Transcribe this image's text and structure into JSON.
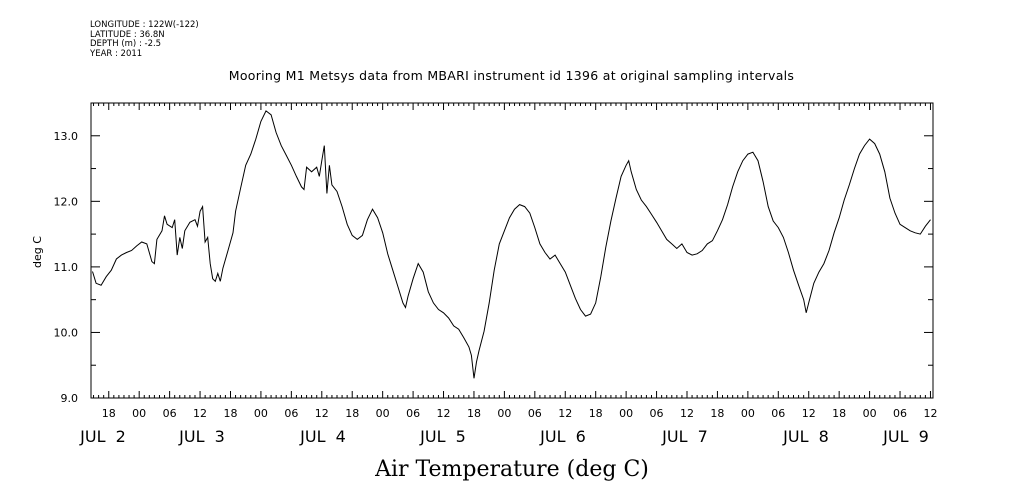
{
  "metadata": {
    "longitude": "LONGITUDE : 122W(-122)",
    "latitude": "LATITUDE : 36.8N",
    "depth": "DEPTH (m) : -2.5",
    "year": "YEAR : 2011"
  },
  "chart_data": {
    "type": "line",
    "title": "Mooring M1 Metsys data from MBARI instrument id 1396 at original sampling intervals",
    "xlabel": "Air Temperature (deg C)",
    "ylabel": "deg C",
    "ylim": [
      9.0,
      13.5
    ],
    "yticks": [
      "9.0",
      "10.0",
      "11.0",
      "12.0",
      "13.0"
    ],
    "xlim_hours": [
      -9.5,
      156.5
    ],
    "x_hour_ticks": [
      "18",
      "00",
      "06",
      "12",
      "18",
      "00",
      "06",
      "12",
      "18",
      "00",
      "06",
      "12",
      "18",
      "00",
      "06",
      "12",
      "18",
      "00",
      "06",
      "12",
      "18",
      "00",
      "06",
      "12",
      "18",
      "00",
      "06",
      "12"
    ],
    "x_date_labels": [
      "JUL  2",
      "JUL  3",
      "JUL  4",
      "JUL  5",
      "JUL  6",
      "JUL  7",
      "JUL  8",
      "JUL  9"
    ],
    "series": [
      {
        "values": [
          [
            -9.2,
            10.93
          ],
          [
            -8.5,
            10.75
          ],
          [
            -7.5,
            10.72
          ],
          [
            -6.5,
            10.85
          ],
          [
            -5.5,
            10.95
          ],
          [
            -4.5,
            11.12
          ],
          [
            -3.5,
            11.18
          ],
          [
            -2.5,
            11.22
          ],
          [
            -1.5,
            11.25
          ],
          [
            -0.5,
            11.32
          ],
          [
            0.5,
            11.38
          ],
          [
            1.5,
            11.35
          ],
          [
            2.5,
            11.08
          ],
          [
            3.0,
            11.05
          ],
          [
            3.5,
            11.42
          ],
          [
            4.5,
            11.55
          ],
          [
            5.0,
            11.78
          ],
          [
            5.5,
            11.65
          ],
          [
            6.5,
            11.6
          ],
          [
            7.0,
            11.72
          ],
          [
            7.5,
            11.18
          ],
          [
            8.0,
            11.45
          ],
          [
            8.5,
            11.28
          ],
          [
            9.0,
            11.55
          ],
          [
            10.0,
            11.68
          ],
          [
            11.0,
            11.72
          ],
          [
            11.5,
            11.62
          ],
          [
            12.0,
            11.85
          ],
          [
            12.5,
            11.92
          ],
          [
            13.0,
            11.38
          ],
          [
            13.5,
            11.45
          ],
          [
            14.0,
            11.05
          ],
          [
            14.5,
            10.82
          ],
          [
            15.0,
            10.78
          ],
          [
            15.5,
            10.9
          ],
          [
            16.0,
            10.78
          ],
          [
            16.5,
            10.98
          ],
          [
            17.5,
            11.25
          ],
          [
            18.5,
            11.52
          ],
          [
            19.0,
            11.85
          ],
          [
            20.0,
            12.2
          ],
          [
            21.0,
            12.55
          ],
          [
            22.0,
            12.72
          ],
          [
            23.0,
            12.95
          ],
          [
            24.0,
            13.22
          ],
          [
            25.0,
            13.38
          ],
          [
            26.0,
            13.32
          ],
          [
            27.0,
            13.05
          ],
          [
            28.0,
            12.85
          ],
          [
            29.0,
            12.7
          ],
          [
            30.0,
            12.55
          ],
          [
            31.0,
            12.38
          ],
          [
            32.0,
            12.22
          ],
          [
            32.5,
            12.18
          ],
          [
            33.0,
            12.52
          ],
          [
            34.0,
            12.45
          ],
          [
            35.0,
            12.52
          ],
          [
            35.5,
            12.38
          ],
          [
            36.0,
            12.62
          ],
          [
            36.5,
            12.85
          ],
          [
            37.0,
            12.12
          ],
          [
            37.5,
            12.55
          ],
          [
            38.0,
            12.25
          ],
          [
            39.0,
            12.15
          ],
          [
            40.0,
            11.92
          ],
          [
            41.0,
            11.65
          ],
          [
            42.0,
            11.48
          ],
          [
            43.0,
            11.42
          ],
          [
            44.0,
            11.48
          ],
          [
            45.0,
            11.72
          ],
          [
            46.0,
            11.88
          ],
          [
            47.0,
            11.75
          ],
          [
            48.0,
            11.52
          ],
          [
            49.0,
            11.2
          ],
          [
            50.0,
            10.95
          ],
          [
            51.0,
            10.7
          ],
          [
            52.0,
            10.45
          ],
          [
            52.5,
            10.38
          ],
          [
            53.0,
            10.55
          ],
          [
            54.0,
            10.82
          ],
          [
            55.0,
            11.05
          ],
          [
            56.0,
            10.92
          ],
          [
            57.0,
            10.62
          ],
          [
            58.0,
            10.45
          ],
          [
            59.0,
            10.35
          ],
          [
            60.0,
            10.3
          ],
          [
            61.0,
            10.22
          ],
          [
            62.0,
            10.1
          ],
          [
            63.0,
            10.05
          ],
          [
            64.0,
            9.92
          ],
          [
            65.0,
            9.78
          ],
          [
            65.5,
            9.65
          ],
          [
            66.0,
            9.3
          ],
          [
            66.5,
            9.55
          ],
          [
            67.0,
            9.72
          ],
          [
            68.0,
            10.02
          ],
          [
            69.0,
            10.45
          ],
          [
            70.0,
            10.95
          ],
          [
            71.0,
            11.35
          ],
          [
            72.0,
            11.55
          ],
          [
            73.0,
            11.75
          ],
          [
            74.0,
            11.88
          ],
          [
            75.0,
            11.95
          ],
          [
            76.0,
            11.92
          ],
          [
            77.0,
            11.82
          ],
          [
            78.0,
            11.6
          ],
          [
            79.0,
            11.35
          ],
          [
            80.0,
            11.22
          ],
          [
            81.0,
            11.12
          ],
          [
            82.0,
            11.18
          ],
          [
            83.0,
            11.05
          ],
          [
            84.0,
            10.92
          ],
          [
            85.0,
            10.72
          ],
          [
            86.0,
            10.52
          ],
          [
            87.0,
            10.35
          ],
          [
            88.0,
            10.25
          ],
          [
            89.0,
            10.28
          ],
          [
            90.0,
            10.45
          ],
          [
            91.0,
            10.85
          ],
          [
            92.0,
            11.3
          ],
          [
            93.0,
            11.7
          ],
          [
            94.0,
            12.05
          ],
          [
            95.0,
            12.38
          ],
          [
            96.0,
            12.55
          ],
          [
            96.5,
            12.62
          ],
          [
            97.0,
            12.45
          ],
          [
            98.0,
            12.18
          ],
          [
            99.0,
            12.02
          ],
          [
            100.0,
            11.92
          ],
          [
            101.0,
            11.8
          ],
          [
            102.0,
            11.68
          ],
          [
            103.0,
            11.55
          ],
          [
            104.0,
            11.42
          ],
          [
            105.0,
            11.35
          ],
          [
            106.0,
            11.28
          ],
          [
            107.0,
            11.35
          ],
          [
            108.0,
            11.22
          ],
          [
            109.0,
            11.18
          ],
          [
            110.0,
            11.2
          ],
          [
            111.0,
            11.25
          ],
          [
            112.0,
            11.35
          ],
          [
            113.0,
            11.4
          ],
          [
            114.0,
            11.55
          ],
          [
            115.0,
            11.72
          ],
          [
            116.0,
            11.95
          ],
          [
            117.0,
            12.22
          ],
          [
            118.0,
            12.45
          ],
          [
            119.0,
            12.62
          ],
          [
            120.0,
            12.72
          ],
          [
            121.0,
            12.75
          ],
          [
            122.0,
            12.62
          ],
          [
            123.0,
            12.3
          ],
          [
            124.0,
            11.92
          ],
          [
            125.0,
            11.7
          ],
          [
            126.0,
            11.6
          ],
          [
            127.0,
            11.45
          ],
          [
            128.0,
            11.22
          ],
          [
            129.0,
            10.95
          ],
          [
            130.0,
            10.72
          ],
          [
            131.0,
            10.5
          ],
          [
            131.5,
            10.3
          ],
          [
            132.0,
            10.45
          ],
          [
            133.0,
            10.75
          ],
          [
            134.0,
            10.92
          ],
          [
            135.0,
            11.05
          ],
          [
            136.0,
            11.25
          ],
          [
            137.0,
            11.52
          ],
          [
            138.0,
            11.75
          ],
          [
            139.0,
            12.02
          ],
          [
            140.0,
            12.25
          ],
          [
            141.0,
            12.5
          ],
          [
            142.0,
            12.72
          ],
          [
            143.0,
            12.85
          ],
          [
            144.0,
            12.95
          ],
          [
            145.0,
            12.88
          ],
          [
            146.0,
            12.72
          ],
          [
            147.0,
            12.45
          ],
          [
            148.0,
            12.05
          ],
          [
            149.0,
            11.82
          ],
          [
            150.0,
            11.65
          ],
          [
            151.0,
            11.6
          ],
          [
            152.0,
            11.55
          ],
          [
            153.0,
            11.52
          ],
          [
            154.0,
            11.5
          ],
          [
            155.0,
            11.62
          ],
          [
            156.0,
            11.72
          ]
        ]
      }
    ],
    "grid": false
  }
}
